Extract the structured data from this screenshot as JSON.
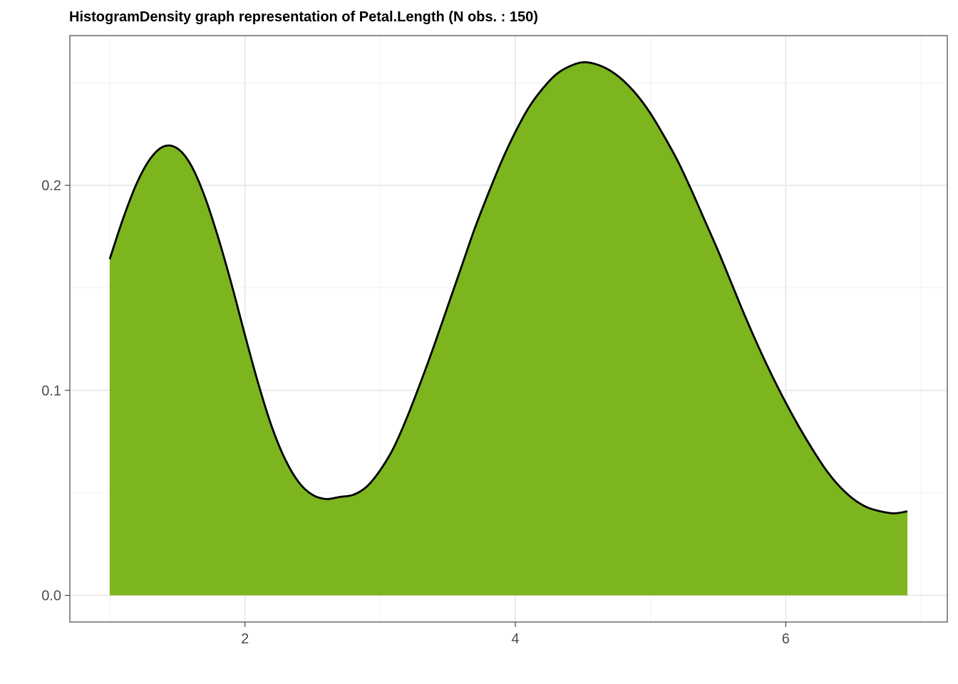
{
  "chart_data": {
    "type": "area",
    "title": "HistogramDensity graph representation of Petal.Length (N obs. : 150)",
    "xlabel": "",
    "ylabel": "",
    "xlim": [
      0.705,
      7.195
    ],
    "ylim": [
      -0.013,
      0.273
    ],
    "x_ticks": [
      2,
      4,
      6
    ],
    "x_tick_labels": [
      "2",
      "4",
      "6"
    ],
    "x_minor_ticks": [
      1,
      3,
      5,
      7
    ],
    "y_ticks": [
      0.0,
      0.1,
      0.2
    ],
    "y_tick_labels": [
      "0.0",
      "0.1",
      "0.2"
    ],
    "y_minor_ticks": [
      0.05,
      0.15,
      0.25
    ],
    "grid": true,
    "fill_color": "#7cb51e",
    "line_color": "#000000",
    "series": [
      {
        "x": [
          1.0,
          1.1,
          1.2,
          1.3,
          1.4,
          1.5,
          1.6,
          1.7,
          1.8,
          1.9,
          2.0,
          2.1,
          2.2,
          2.3,
          2.4,
          2.5,
          2.6,
          2.7,
          2.8,
          2.9,
          3.0,
          3.1,
          3.2,
          3.3,
          3.4,
          3.5,
          3.6,
          3.7,
          3.8,
          3.9,
          4.0,
          4.1,
          4.2,
          4.3,
          4.4,
          4.5,
          4.6,
          4.7,
          4.8,
          4.9,
          5.0,
          5.1,
          5.2,
          5.3,
          5.4,
          5.5,
          5.6,
          5.7,
          5.8,
          5.9,
          6.0,
          6.1,
          6.2,
          6.3,
          6.4,
          6.5,
          6.6,
          6.7,
          6.8,
          6.9
        ],
        "values": [
          0.164,
          0.184,
          0.201,
          0.213,
          0.219,
          0.218,
          0.21,
          0.195,
          0.175,
          0.152,
          0.127,
          0.103,
          0.082,
          0.066,
          0.055,
          0.049,
          0.047,
          0.048,
          0.049,
          0.053,
          0.061,
          0.072,
          0.087,
          0.104,
          0.122,
          0.141,
          0.16,
          0.179,
          0.196,
          0.212,
          0.226,
          0.238,
          0.247,
          0.254,
          0.258,
          0.26,
          0.259,
          0.256,
          0.251,
          0.244,
          0.235,
          0.224,
          0.212,
          0.198,
          0.183,
          0.168,
          0.152,
          0.136,
          0.121,
          0.107,
          0.094,
          0.082,
          0.071,
          0.061,
          0.053,
          0.047,
          0.043,
          0.041,
          0.04,
          0.041
        ]
      }
    ]
  }
}
